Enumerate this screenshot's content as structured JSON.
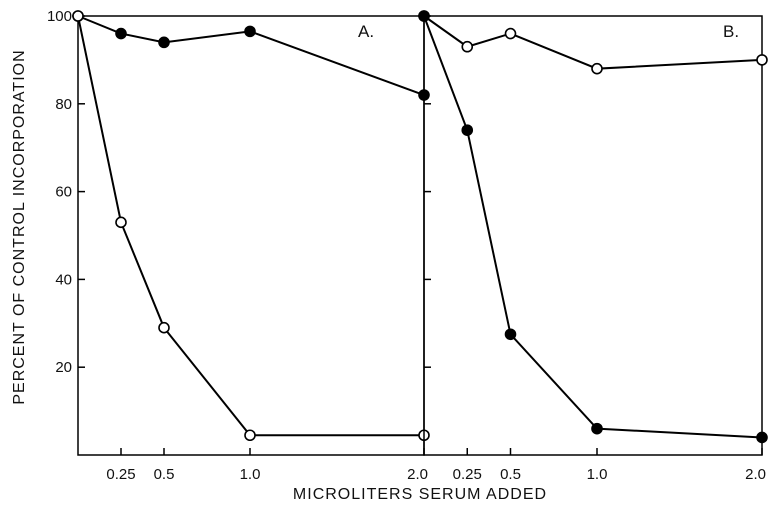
{
  "figure": {
    "ylabel": "PERCENT OF CONTROL INCORPORATION",
    "xlabel": "MICROLITERS SERUM ADDED"
  },
  "chart_data": [
    {
      "type": "line",
      "panel": "A.",
      "xlim": [
        0,
        2
      ],
      "ylim": [
        0,
        100
      ],
      "x_ticks": [
        0.25,
        0.5,
        1.0,
        2.0
      ],
      "x_tick_labels": [
        "0.25",
        "0.5",
        "1.0",
        "2.0"
      ],
      "y_ticks": [
        20,
        40,
        60,
        80,
        100
      ],
      "y_tick_labels": [
        "20",
        "40",
        "60",
        "80",
        "100"
      ],
      "grid": false,
      "series": [
        {
          "marker": "filled-circle",
          "color": "#000000",
          "x": [
            0,
            0.25,
            0.5,
            1.0,
            2.0
          ],
          "y": [
            100,
            96,
            94,
            96.5,
            82
          ]
        },
        {
          "marker": "open-circle",
          "color": "#000000",
          "x": [
            0,
            0.25,
            0.5,
            1.0,
            2.0
          ],
          "y": [
            100,
            53,
            29,
            4.5,
            4.5
          ]
        }
      ]
    },
    {
      "type": "line",
      "panel": "B.",
      "xlim": [
        0,
        2
      ],
      "ylim": [
        0,
        100
      ],
      "x_ticks": [
        0.25,
        0.5,
        1.0,
        2.0
      ],
      "x_tick_labels": [
        "0.25",
        "0.5",
        "1.0",
        "2.0"
      ],
      "y_ticks": [
        20,
        40,
        60,
        80,
        100
      ],
      "grid": false,
      "series": [
        {
          "marker": "open-circle",
          "color": "#000000",
          "x": [
            0,
            0.25,
            0.5,
            1.0,
            2.0
          ],
          "y": [
            100,
            93,
            96,
            88,
            90
          ]
        },
        {
          "marker": "filled-circle",
          "color": "#000000",
          "x": [
            0,
            0.25,
            0.5,
            1.0,
            2.0
          ],
          "y": [
            100,
            74,
            27.5,
            6,
            4
          ]
        }
      ]
    }
  ]
}
